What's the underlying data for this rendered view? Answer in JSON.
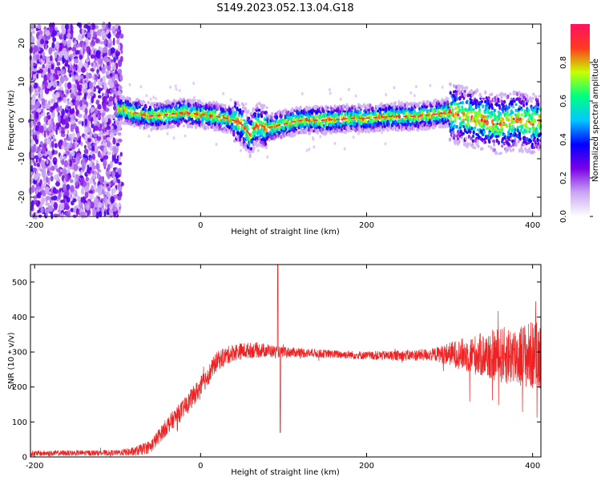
{
  "title": "S149.2023.052.13.04.G18",
  "colors": {
    "snr_line": "#ee2222",
    "colormap": [
      "#ffffff",
      "#c9a6f2",
      "#7a00e6",
      "#0000ff",
      "#00c8ff",
      "#00ff80",
      "#c8ff00",
      "#ff3a20",
      "#ff1060"
    ]
  },
  "chart_data": [
    {
      "type": "heatmap",
      "xlabel": "Height of straight line (km)",
      "ylabel": "Frequency (Hz)",
      "xlim": [
        -205,
        410
      ],
      "ylim": [
        -25,
        25
      ],
      "xticks": [
        -200,
        0,
        200,
        400
      ],
      "yticks": [
        -20,
        -10,
        0,
        10,
        20
      ],
      "noise_region_x": [
        -205,
        -95
      ],
      "signal_start_x": -100,
      "ridge": {
        "x": [
          -100,
          -80,
          -60,
          -40,
          -20,
          0,
          20,
          40,
          50,
          60,
          65,
          70,
          80,
          100,
          120,
          150,
          180,
          200,
          230,
          260,
          280,
          300,
          320,
          340,
          360,
          380,
          400,
          410
        ],
        "y": [
          3,
          2,
          1,
          1.5,
          2,
          1.5,
          1,
          0,
          -1,
          -4,
          -2,
          -1,
          -2,
          -1,
          0,
          0,
          0.5,
          0.5,
          1,
          1,
          1.5,
          2,
          1,
          0,
          -1,
          0,
          -1,
          0
        ]
      },
      "colorbar": {
        "label": "Normalized spectral amplitude",
        "range": [
          0,
          1
        ],
        "ticks": [
          0.0,
          0.2,
          0.4,
          0.6,
          0.8
        ]
      }
    },
    {
      "type": "line",
      "xlabel": "Height of straight line (km)",
      "ylabel": "SNR (10 * v/v)",
      "xlim": [
        -205,
        410
      ],
      "ylim": [
        0,
        550
      ],
      "xticks": [
        -200,
        0,
        200,
        400
      ],
      "yticks": [
        0,
        100,
        200,
        300,
        400,
        500
      ],
      "envelope": {
        "x": [
          -205,
          -100,
          -80,
          -60,
          -40,
          -20,
          0,
          20,
          40,
          60,
          80,
          90,
          100,
          150,
          200,
          250,
          300,
          350,
          400,
          410
        ],
        "y": [
          10,
          12,
          15,
          30,
          90,
          140,
          200,
          275,
          300,
          305,
          305,
          300,
          300,
          295,
          290,
          290,
          295,
          290,
          290,
          290
        ]
      },
      "noise_amplitude": {
        "x": [
          -205,
          -100,
          -40,
          0,
          40,
          80,
          100,
          150,
          200,
          280,
          320,
          360,
          400,
          410
        ],
        "y": [
          8,
          8,
          25,
          30,
          25,
          20,
          15,
          12,
          12,
          18,
          50,
          80,
          100,
          100
        ]
      },
      "spikes": [
        {
          "x": 93,
          "y": 550
        },
        {
          "x": 96,
          "y": 70
        }
      ]
    }
  ]
}
